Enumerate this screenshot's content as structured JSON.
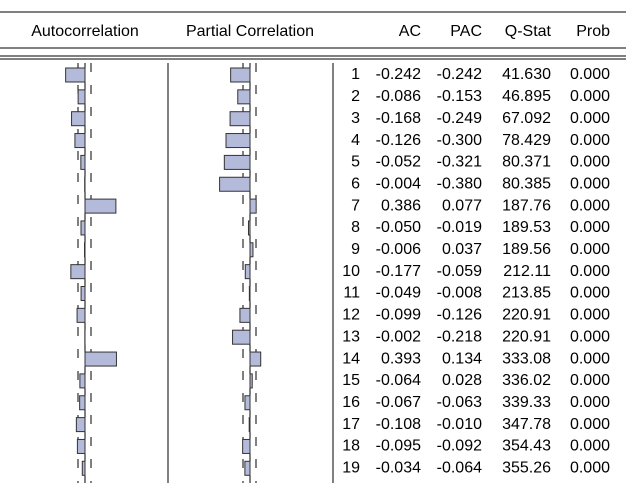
{
  "header": [
    "Autocorrelation",
    "Partial Correlation",
    "AC",
    "PAC",
    "Q-Stat",
    "Prob"
  ],
  "rows": [
    [
      "1",
      "-0.242",
      "-0.242",
      "41.630",
      "0.000"
    ],
    [
      "2",
      "-0.086",
      "-0.153",
      "46.895",
      "0.000"
    ],
    [
      "3",
      "-0.168",
      "-0.249",
      "67.092",
      "0.000"
    ],
    [
      "4",
      "-0.126",
      "-0.300",
      "78.429",
      "0.000"
    ],
    [
      "5",
      "-0.052",
      "-0.321",
      "80.371",
      "0.000"
    ],
    [
      "6",
      "-0.004",
      "-0.380",
      "80.385",
      "0.000"
    ],
    [
      "7",
      "0.386",
      "0.077",
      "187.76",
      "0.000"
    ],
    [
      "8",
      "-0.050",
      "-0.019",
      "189.53",
      "0.000"
    ],
    [
      "9",
      "-0.006",
      "0.037",
      "189.56",
      "0.000"
    ],
    [
      "10",
      "-0.177",
      "-0.059",
      "212.11",
      "0.000"
    ],
    [
      "11",
      "-0.049",
      "-0.008",
      "213.85",
      "0.000"
    ],
    [
      "12",
      "-0.099",
      "-0.126",
      "220.91",
      "0.000"
    ],
    [
      "13",
      "-0.002",
      "-0.218",
      "220.91",
      "0.000"
    ],
    [
      "14",
      "0.393",
      "0.134",
      "333.08",
      "0.000"
    ],
    [
      "15",
      "-0.064",
      "0.028",
      "336.02",
      "0.000"
    ],
    [
      "16",
      "-0.067",
      "-0.063",
      "339.33",
      "0.000"
    ],
    [
      "17",
      "-0.108",
      "-0.010",
      "347.78",
      "0.000"
    ],
    [
      "18",
      "-0.095",
      "-0.092",
      "354.43",
      "0.000"
    ],
    [
      "19",
      "-0.034",
      "-0.064",
      "355.26",
      "0.000"
    ]
  ]
}
